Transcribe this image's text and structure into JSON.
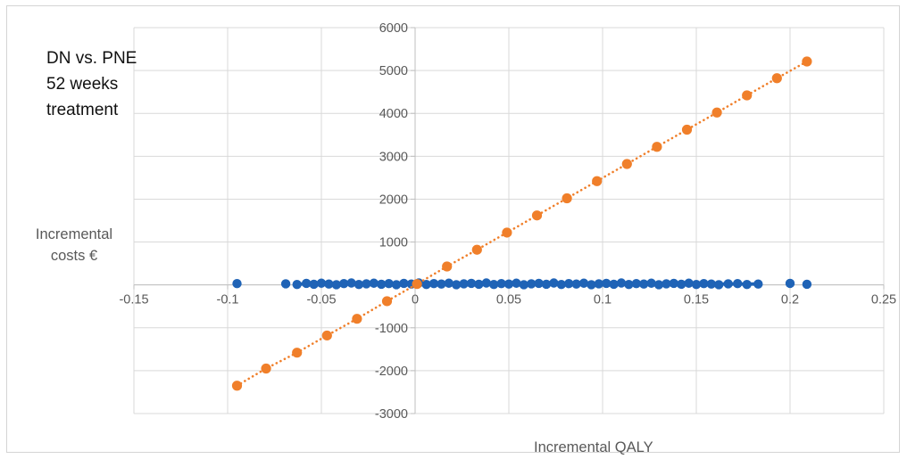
{
  "chart_data": {
    "type": "scatter",
    "title_lines": [
      "DN vs. PNE",
      "52 weeks",
      "treatment"
    ],
    "ylabel_lines": [
      "Incremental",
      "costs €"
    ],
    "xlabel": "Incremental QALY",
    "xlim": [
      -0.15,
      0.25
    ],
    "ylim": [
      -3000,
      6000
    ],
    "x_ticks": [
      -0.15,
      -0.1,
      -0.05,
      0,
      0.05,
      0.1,
      0.15,
      0.2,
      0.25
    ],
    "x_tick_labels": [
      "-0.15",
      "-0.1",
      "-0.05",
      "0",
      "0.05",
      "0.1",
      "0.15",
      "0.2",
      "0.25"
    ],
    "y_ticks": [
      -3000,
      -2000,
      -1000,
      0,
      1000,
      2000,
      3000,
      4000,
      5000,
      6000
    ],
    "y_tick_labels": [
      "-3000",
      "-2000",
      "-1000",
      "",
      "1000",
      "2000",
      "3000",
      "4000",
      "5000",
      "6000"
    ],
    "grid": true,
    "legend": "none",
    "series": [
      {
        "color": "#1f63b6",
        "marker": "circle",
        "line": "none",
        "cluster_x_range": [
          -0.065,
          0.185
        ],
        "cluster_y_range": [
          -20,
          60
        ],
        "points": [
          [
            -0.095,
            30
          ],
          [
            -0.069,
            25
          ],
          [
            -0.063,
            10
          ],
          [
            -0.058,
            35
          ],
          [
            -0.054,
            15
          ],
          [
            -0.05,
            40
          ],
          [
            -0.046,
            20
          ],
          [
            -0.042,
            5
          ],
          [
            -0.038,
            30
          ],
          [
            -0.034,
            45
          ],
          [
            -0.03,
            10
          ],
          [
            -0.026,
            25
          ],
          [
            -0.022,
            40
          ],
          [
            -0.018,
            15
          ],
          [
            -0.014,
            30
          ],
          [
            -0.01,
            5
          ],
          [
            -0.006,
            35
          ],
          [
            -0.002,
            20
          ],
          [
            0.002,
            45
          ],
          [
            0.006,
            10
          ],
          [
            0.01,
            30
          ],
          [
            0.014,
            20
          ],
          [
            0.018,
            40
          ],
          [
            0.022,
            5
          ],
          [
            0.026,
            25
          ],
          [
            0.03,
            35
          ],
          [
            0.034,
            15
          ],
          [
            0.038,
            45
          ],
          [
            0.042,
            10
          ],
          [
            0.046,
            30
          ],
          [
            0.05,
            20
          ],
          [
            0.054,
            40
          ],
          [
            0.058,
            5
          ],
          [
            0.062,
            25
          ],
          [
            0.066,
            35
          ],
          [
            0.07,
            15
          ],
          [
            0.074,
            45
          ],
          [
            0.078,
            10
          ],
          [
            0.082,
            30
          ],
          [
            0.086,
            20
          ],
          [
            0.09,
            40
          ],
          [
            0.094,
            5
          ],
          [
            0.098,
            25
          ],
          [
            0.102,
            35
          ],
          [
            0.106,
            15
          ],
          [
            0.11,
            45
          ],
          [
            0.114,
            10
          ],
          [
            0.118,
            30
          ],
          [
            0.122,
            20
          ],
          [
            0.126,
            40
          ],
          [
            0.13,
            5
          ],
          [
            0.134,
            25
          ],
          [
            0.138,
            35
          ],
          [
            0.142,
            15
          ],
          [
            0.146,
            40
          ],
          [
            0.15,
            10
          ],
          [
            0.154,
            30
          ],
          [
            0.158,
            20
          ],
          [
            0.162,
            5
          ],
          [
            0.167,
            25
          ],
          [
            0.172,
            30
          ],
          [
            0.177,
            10
          ],
          [
            0.183,
            20
          ],
          [
            0.2,
            35
          ],
          [
            0.209,
            15
          ]
        ]
      },
      {
        "color": "#f07f2a",
        "marker": "circle",
        "line": "dotted",
        "points": [
          [
            -0.095,
            -2350
          ],
          [
            -0.0795,
            -1950
          ],
          [
            -0.063,
            -1580
          ],
          [
            -0.047,
            -1180
          ],
          [
            -0.031,
            -790
          ],
          [
            -0.015,
            -380
          ],
          [
            0.001,
            20
          ],
          [
            0.017,
            430
          ],
          [
            0.033,
            820
          ],
          [
            0.049,
            1220
          ],
          [
            0.065,
            1620
          ],
          [
            0.081,
            2020
          ],
          [
            0.097,
            2420
          ],
          [
            0.113,
            2820
          ],
          [
            0.129,
            3220
          ],
          [
            0.145,
            3620
          ],
          [
            0.161,
            4020
          ],
          [
            0.177,
            4420
          ],
          [
            0.193,
            4820
          ],
          [
            0.209,
            5210
          ]
        ]
      }
    ]
  }
}
